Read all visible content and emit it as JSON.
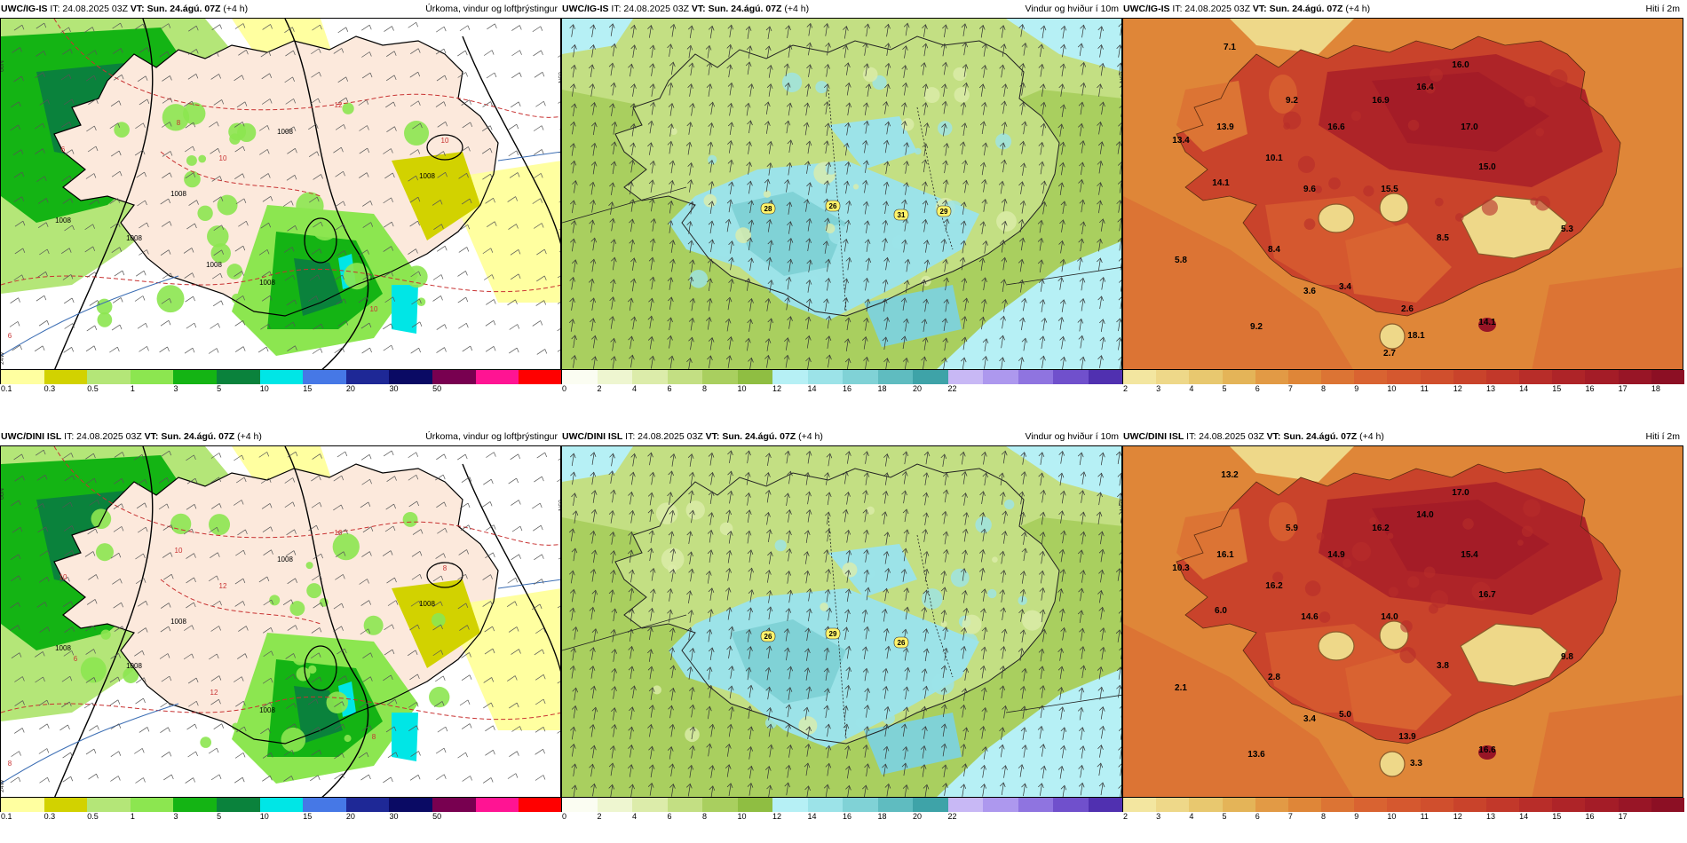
{
  "panels": [
    {
      "model": "UWC/IG-IS",
      "it": "IT: 24.08.2025 03Z",
      "vt_label": "VT:",
      "vt": "Sun. 24.ágú. 07Z",
      "lead": "(+4 h)",
      "variable": "Úrkoma, vindur og loftþrýstingur",
      "kind": "precip",
      "colorbar_ticks": [
        "0.1",
        "0.3",
        "0.5",
        "1",
        "3",
        "5",
        "10",
        "15",
        "20",
        "30",
        "50"
      ],
      "map_labels": [
        "1008",
        "1008",
        "1008",
        "1008",
        "1008",
        "1008",
        "1008",
        "10",
        "10",
        "10",
        "12",
        "8",
        "6",
        "6"
      ]
    },
    {
      "model": "UWC/IG-IS",
      "it": "IT: 24.08.2025 03Z",
      "vt_label": "VT:",
      "vt": "Sun. 24.ágú. 07Z",
      "lead": "(+4 h)",
      "variable": "Vindur og hviður í 10m",
      "kind": "wind",
      "colorbar_ticks": [
        "0",
        "2",
        "4",
        "6",
        "8",
        "10",
        "12",
        "14",
        "16",
        "18",
        "20",
        "22"
      ],
      "map_labels": [
        "28",
        "26",
        "31",
        "29"
      ]
    },
    {
      "model": "UWC/IG-IS",
      "it": "IT: 24.08.2025 03Z",
      "vt_label": "VT:",
      "vt": "Sun. 24.ágú. 07Z",
      "lead": "(+4 h)",
      "variable": "Hiti í 2m",
      "kind": "temp",
      "colorbar_ticks": [
        "2",
        "3",
        "4",
        "5",
        "6",
        "7",
        "8",
        "9",
        "10",
        "11",
        "12",
        "13",
        "14",
        "15",
        "16",
        "17",
        "18"
      ],
      "map_labels": [
        "7.1",
        "9.2",
        "13.9",
        "13.4",
        "16.6",
        "16.9",
        "16.4",
        "16.0",
        "17.0",
        "15.0",
        "10.1",
        "9.6",
        "15.5",
        "14.1",
        "8.5",
        "8.4",
        "5.8",
        "3.6",
        "3.4",
        "2.6",
        "5.3",
        "9.2",
        "14.1",
        "18.1",
        "2.7"
      ]
    },
    {
      "model": "UWC/DINI ISL",
      "it": "IT: 24.08.2025 03Z",
      "vt_label": "VT:",
      "vt": "Sun. 24.ágú. 07Z",
      "lead": "(+4 h)",
      "variable": "Úrkoma, vindur og loftþrýstingur",
      "kind": "precip",
      "colorbar_ticks": [
        "0.1",
        "0.3",
        "0.5",
        "1",
        "3",
        "5",
        "10",
        "15",
        "20",
        "30",
        "50"
      ],
      "map_labels": [
        "1008",
        "1008",
        "1008",
        "1008",
        "1008",
        "1008",
        "12",
        "12",
        "8",
        "8",
        "10",
        "10",
        "10",
        "8",
        "6"
      ]
    },
    {
      "model": "UWC/DINI ISL",
      "it": "IT: 24.08.2025 03Z",
      "vt_label": "VT:",
      "vt": "Sun. 24.ágú. 07Z",
      "lead": "(+4 h)",
      "variable": "Vindur og hviður í 10m",
      "kind": "wind",
      "colorbar_ticks": [
        "0",
        "2",
        "4",
        "6",
        "8",
        "10",
        "12",
        "14",
        "16",
        "18",
        "20",
        "22"
      ],
      "map_labels": [
        "26",
        "29",
        "26"
      ]
    },
    {
      "model": "UWC/DINI ISL",
      "it": "IT: 24.08.2025 03Z",
      "vt_label": "VT:",
      "vt": "Sun. 24.ágú. 07Z",
      "lead": "(+4 h)",
      "variable": "Hiti í 2m",
      "kind": "temp",
      "colorbar_ticks": [
        "2",
        "3",
        "4",
        "5",
        "6",
        "7",
        "8",
        "9",
        "10",
        "11",
        "12",
        "13",
        "14",
        "15",
        "16",
        "17"
      ],
      "map_labels": [
        "13.2",
        "5.9",
        "16.1",
        "10.3",
        "14.9",
        "16.2",
        "14.0",
        "17.0",
        "15.4",
        "16.7",
        "16.2",
        "14.6",
        "14.0",
        "6.0",
        "3.8",
        "2.8",
        "2.1",
        "3.4",
        "5.0",
        "13.9",
        "9.8",
        "13.6",
        "16.6",
        "3.3"
      ]
    }
  ],
  "side_labels": {
    "n69": "69N",
    "n66": "66N",
    "w24": "24W"
  },
  "colors": {
    "precip": [
      "#ffffa0",
      "#d2d200",
      "#b4e678",
      "#8ce650",
      "#14b414",
      "#0a823c",
      "#00e6e6",
      "#4678e6",
      "#1e2896",
      "#0a0a64",
      "#780050",
      "#ff1493",
      "#ff0000"
    ],
    "wind": [
      "#fbfdf2",
      "#eef6d0",
      "#dcecaa",
      "#c3df83",
      "#a9cf5f",
      "#8fbe42",
      "#b6f0f5",
      "#9ce3e8",
      "#80d2d6",
      "#5fbcc0",
      "#3ea3a8",
      "#c8b8f5",
      "#ad98ee",
      "#8f74e0",
      "#7050cc",
      "#5030b0"
    ],
    "temp": [
      "#f3e6a0",
      "#eed889",
      "#e8c86f",
      "#e4b458",
      "#e29a45",
      "#df8638",
      "#dc7434",
      "#d96331",
      "#d5582f",
      "#d04f2d",
      "#c9432b",
      "#c2382a",
      "#b82d29",
      "#ae2428",
      "#a41c27",
      "#981526",
      "#8c0f24"
    ]
  }
}
